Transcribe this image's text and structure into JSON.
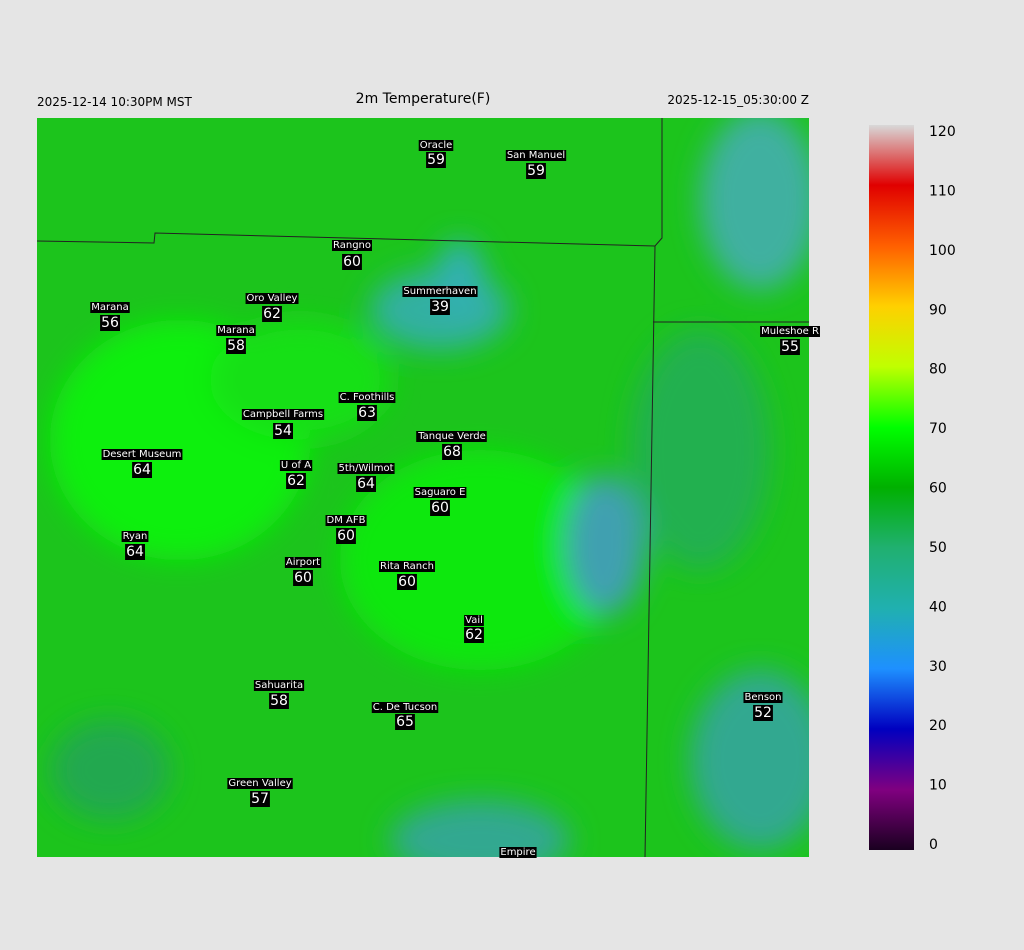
{
  "header": {
    "left": "2025-12-14 10:30PM MST",
    "title": "2m Temperature(F)",
    "right": "2025-12-15_05:30:00 Z"
  },
  "stations": [
    {
      "name": "Oracle",
      "value": 59
    },
    {
      "name": "San Manuel",
      "value": 59
    },
    {
      "name": "Rangno",
      "value": 60
    },
    {
      "name": "Summerhaven",
      "value": 39
    },
    {
      "name": "Oro Valley",
      "value": 62
    },
    {
      "name": "Marana",
      "value": 56
    },
    {
      "name": "Marana",
      "value": 58
    },
    {
      "name": "Muleshoe R",
      "value": 55
    },
    {
      "name": "C. Foothills",
      "value": 63
    },
    {
      "name": "Campbell Farms",
      "value": 54
    },
    {
      "name": "Tanque Verde",
      "value": 68
    },
    {
      "name": "Desert Museum",
      "value": 64
    },
    {
      "name": "U of A",
      "value": 62
    },
    {
      "name": "5th/Wilmot",
      "value": 64
    },
    {
      "name": "Saguaro E",
      "value": 60
    },
    {
      "name": "DM AFB",
      "value": 60
    },
    {
      "name": "Ryan",
      "value": 64
    },
    {
      "name": "Airport",
      "value": 60
    },
    {
      "name": "Rita Ranch",
      "value": 60
    },
    {
      "name": "Vail",
      "value": 62
    },
    {
      "name": "Sahuarita",
      "value": 58
    },
    {
      "name": "C. De Tucson",
      "value": 65
    },
    {
      "name": "Benson",
      "value": 52
    },
    {
      "name": "Green Valley",
      "value": 57
    },
    {
      "name": "Empire"
    }
  ],
  "colorbar": {
    "lim": [
      0,
      120
    ],
    "ticks": [
      0,
      10,
      20,
      30,
      40,
      50,
      60,
      70,
      80,
      90,
      100,
      110,
      120
    ]
  }
}
